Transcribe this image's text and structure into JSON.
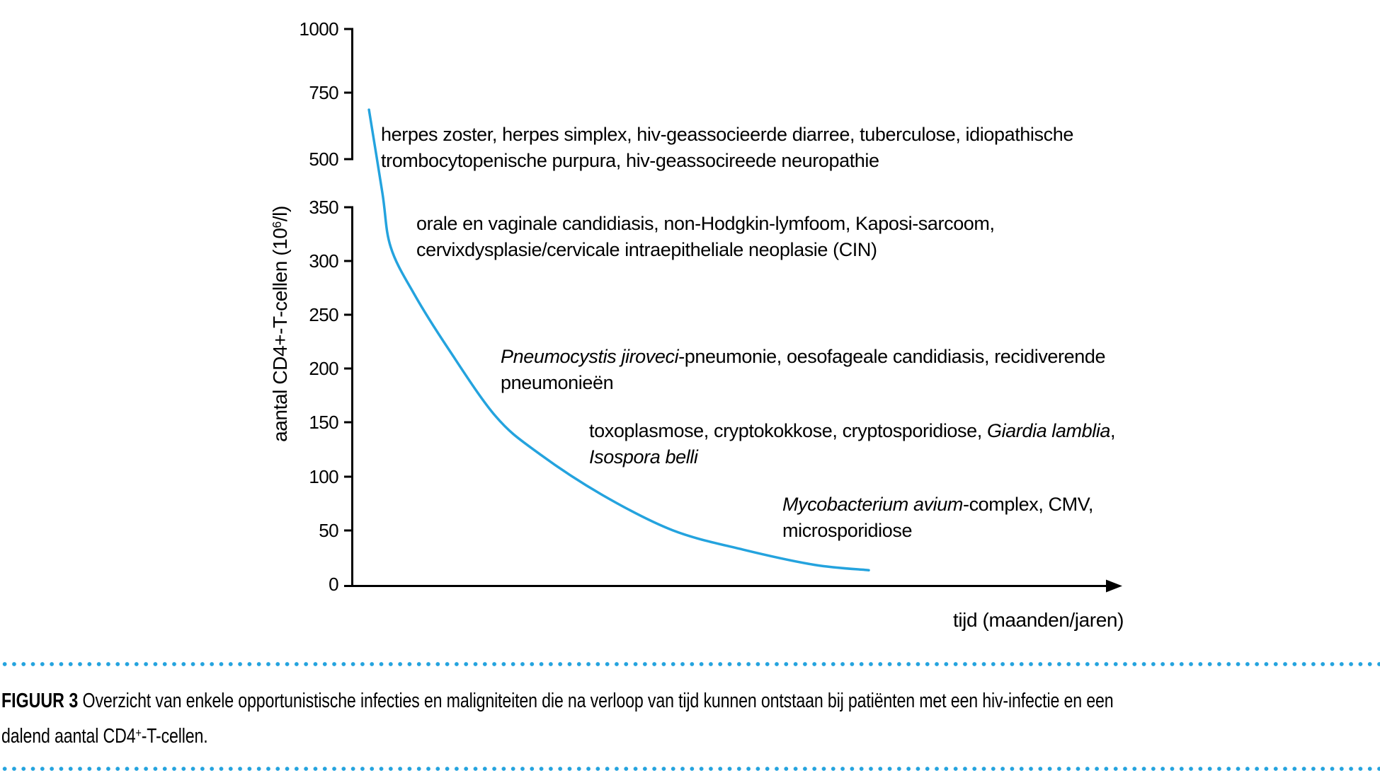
{
  "accent_color": "#24a3de",
  "chart_data": {
    "type": "line",
    "title": "",
    "xlabel": "tijd (maanden/jaren)",
    "ylabel": "aantal CD4+-T-cellen (10⁶/l)",
    "ylabel_parts": [
      {
        "t": "aantal CD4+-T-cellen (10"
      },
      {
        "t": "6",
        "sup": true
      },
      {
        "t": "/l)"
      }
    ],
    "ylim": [
      0,
      1000
    ],
    "xlim": [
      0,
      10.6
    ],
    "ytick_labels": [
      "1000",
      "750",
      "500",
      "350",
      "300",
      "250",
      "200",
      "150",
      "100",
      "50",
      "0"
    ],
    "ytick_values": [
      1000,
      750,
      500,
      350,
      300,
      250,
      200,
      150,
      100,
      50,
      0
    ],
    "y_axis_note": "y-axis is compressed above 350 with an axis break between the 350 and 500 ticks",
    "grid": false,
    "legend": "none",
    "x_axis_style": "arrow, no ticks",
    "series": [
      {
        "name": "dalend aantal CD4+-T-cellen",
        "color": "#24a3de",
        "x": [
          0.33,
          0.59,
          0.75,
          1.21,
          1.86,
          2.78,
          3.6,
          4.84,
          6.21,
          7.58,
          8.95,
          10.0
        ],
        "y": [
          690,
          394,
          313,
          269,
          219,
          156,
          122,
          83,
          50,
          32,
          18,
          13
        ]
      }
    ],
    "annotations": [
      {
        "cd4_range": "350-1000",
        "lines": [
          [
            {
              "t": "herpes zoster, herpes simplex, hiv-geassocieerde diarree, tuberculose, idiopathische"
            }
          ],
          [
            {
              "t": "trombocytopenische purpura, hiv-geassocireede neuropathie"
            }
          ]
        ]
      },
      {
        "cd4_range": "250-350",
        "lines": [
          [
            {
              "t": "orale en vaginale candidiasis, non-Hodgkin-lymfoom, Kaposi-sarcoom,"
            }
          ],
          [
            {
              "t": "cervixdysplasie/cervicale intraepitheliale neoplasie (CIN)"
            }
          ]
        ]
      },
      {
        "cd4_range": "150-200",
        "lines": [
          [
            {
              "t": "Pneumocystis jiroveci",
              "i": true
            },
            {
              "t": "-pneumonie, oesofageale candidiasis, recidiverende"
            }
          ],
          [
            {
              "t": "pneumonieën"
            }
          ]
        ]
      },
      {
        "cd4_range": "100-150",
        "lines": [
          [
            {
              "t": "toxoplasmose, cryptokokkose, cryptosporidiose, "
            },
            {
              "t": "Giardia lamblia",
              "i": true
            },
            {
              "t": ","
            }
          ],
          [
            {
              "t": "Isospora belli",
              "i": true
            }
          ]
        ]
      },
      {
        "cd4_range": "0-50",
        "lines": [
          [
            {
              "t": "Mycobacterium avium",
              "i": true
            },
            {
              "t": "-complex, CMV,"
            }
          ],
          [
            {
              "t": "microsporidiose"
            }
          ]
        ]
      }
    ]
  },
  "caption": {
    "parts": [
      {
        "t": "FIGUUR 3",
        "b": true
      },
      {
        "t": "  Overzicht van enkele opportunistische infecties en maligniteiten die na verloop van tijd kunnen ontstaan bij patiënten met een hiv-infectie en een"
      },
      {
        "br": true
      },
      {
        "t": "dalend aantal CD4"
      },
      {
        "t": "+",
        "sup": true
      },
      {
        "t": "-T-cellen."
      }
    ]
  }
}
